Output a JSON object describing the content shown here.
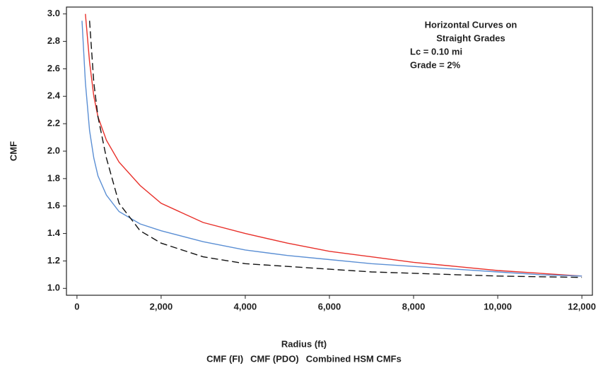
{
  "chart_data": {
    "type": "line",
    "x_label": "Radius (ft)",
    "y_label": "CMF",
    "annotation": [
      "Horizontal Curves on",
      "Straight Grades",
      "Lc = 0.10 mi",
      "Grade = 2%"
    ],
    "xlim": [
      -250,
      12250
    ],
    "ylim": [
      0.95,
      3.05
    ],
    "xticks": [
      0,
      {
        "value": 2000,
        "label": "2,000"
      },
      {
        "value": 4000,
        "label": "4,000"
      },
      {
        "value": 6000,
        "label": "6,000"
      },
      {
        "value": 8000,
        "label": "8,000"
      },
      {
        "value": 10000,
        "label": "10,000"
      },
      {
        "value": 12000,
        "label": "12,000"
      }
    ],
    "yticks": [
      {
        "value": 1.0,
        "label": "1.0"
      },
      1.2,
      1.4,
      1.6,
      1.8,
      {
        "value": 2.0,
        "label": "2.0"
      },
      2.2,
      2.4,
      2.6,
      2.8,
      {
        "value": 3.0,
        "label": "3.0"
      }
    ],
    "grid": false,
    "legend": "bottom",
    "series": [
      {
        "name": "CMF (FI)",
        "color": "#e8302a",
        "dashed": false,
        "x": [
          200,
          300,
          400,
          500,
          700,
          1000,
          1500,
          2000,
          3000,
          4000,
          5000,
          6000,
          7000,
          8000,
          9000,
          10000,
          11000,
          12000
        ],
        "values": [
          3.0,
          2.65,
          2.4,
          2.25,
          2.08,
          1.92,
          1.75,
          1.62,
          1.48,
          1.4,
          1.33,
          1.27,
          1.23,
          1.19,
          1.16,
          1.13,
          1.11,
          1.09
        ]
      },
      {
        "name": "CMF (PDO)",
        "color": "#5b8fd4",
        "dashed": false,
        "x": [
          120,
          200,
          300,
          400,
          500,
          700,
          1000,
          1500,
          2000,
          3000,
          4000,
          5000,
          6000,
          7000,
          8000,
          9000,
          10000,
          11000,
          12000
        ],
        "values": [
          2.95,
          2.5,
          2.15,
          1.95,
          1.82,
          1.68,
          1.56,
          1.47,
          1.42,
          1.34,
          1.28,
          1.24,
          1.21,
          1.18,
          1.16,
          1.14,
          1.12,
          1.1,
          1.09
        ]
      },
      {
        "name": "Combined HSM CMFs",
        "color": "#111111",
        "dashed": true,
        "x": [
          300,
          400,
          500,
          700,
          1000,
          1500,
          2000,
          3000,
          4000,
          5000,
          6000,
          7000,
          8000,
          9000,
          10000,
          11000,
          12000
        ],
        "values": [
          2.95,
          2.5,
          2.25,
          1.95,
          1.62,
          1.42,
          1.33,
          1.23,
          1.18,
          1.16,
          1.14,
          1.12,
          1.11,
          1.1,
          1.09,
          1.085,
          1.08
        ]
      }
    ]
  }
}
